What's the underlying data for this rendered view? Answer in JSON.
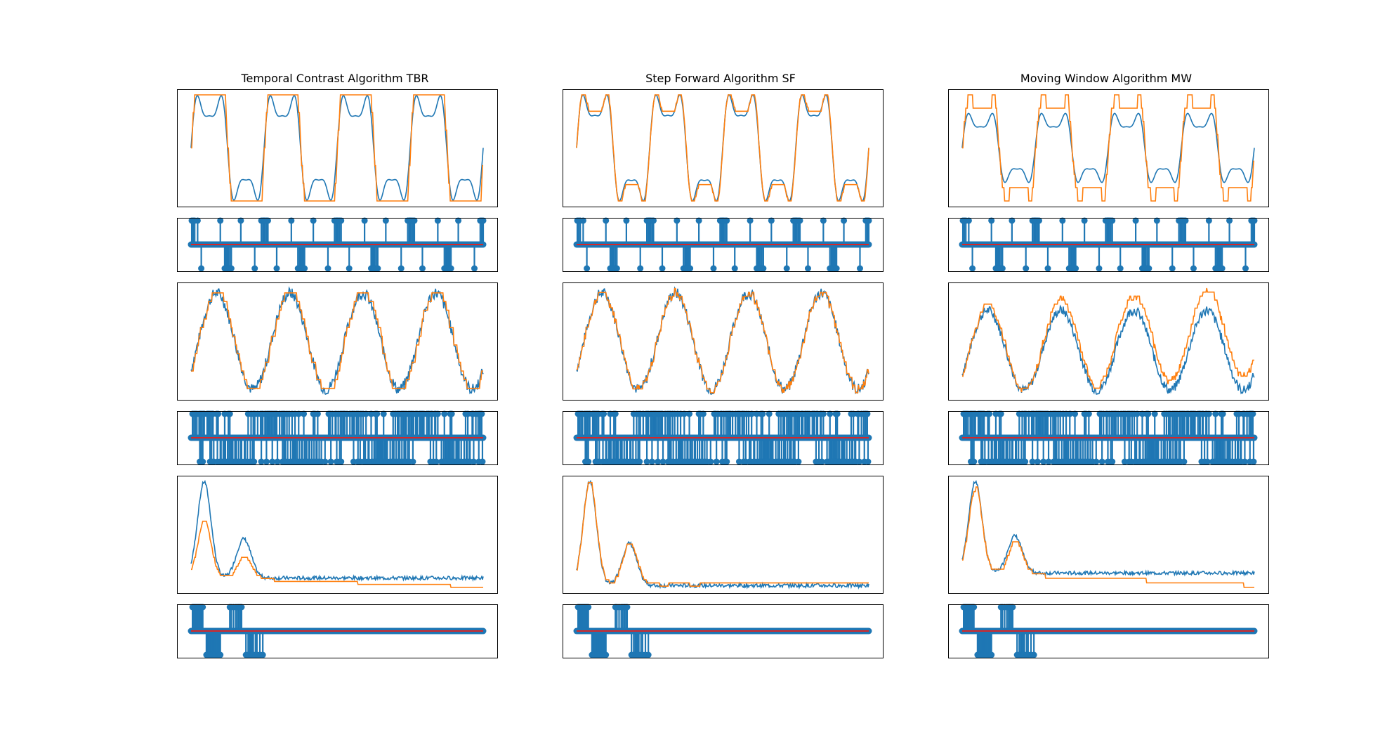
{
  "figure": {
    "columns": [
      {
        "title": "Temporal Contrast Algorithm TBR"
      },
      {
        "title": "Step Forward Algorithm SF"
      },
      {
        "title": "Moving Window Algorithm MW"
      }
    ]
  },
  "colors": {
    "original": "#1f77b4",
    "reconstructed": "#ff7f0e",
    "stem": "#1f77b4",
    "baseline": "#d62728",
    "frame": "#000000"
  },
  "chart_data": [
    {
      "type": "line",
      "column": "Temporal Contrast Algorithm TBR",
      "signal": "composite-wave",
      "series": [
        {
          "values": [],
          "color": "#1f77b4"
        },
        {
          "values": [],
          "color": "#ff7f0e"
        }
      ]
    },
    {
      "type": "stem",
      "column": "Temporal Contrast Algorithm TBR",
      "signal": "composite-wave",
      "spikes": [],
      "baseline": 0
    },
    {
      "type": "line",
      "column": "Temporal Contrast Algorithm TBR",
      "signal": "noisy-sine",
      "series": [
        {
          "values": [],
          "color": "#1f77b4"
        },
        {
          "values": [],
          "color": "#ff7f0e"
        }
      ]
    },
    {
      "type": "stem",
      "column": "Temporal Contrast Algorithm TBR",
      "signal": "noisy-sine",
      "spikes": [],
      "baseline": 0
    },
    {
      "type": "line",
      "column": "Temporal Contrast Algorithm TBR",
      "signal": "decaying-pulse",
      "series": [
        {
          "values": [],
          "color": "#1f77b4"
        },
        {
          "values": [],
          "color": "#ff7f0e"
        }
      ]
    },
    {
      "type": "stem",
      "column": "Temporal Contrast Algorithm TBR",
      "signal": "decaying-pulse",
      "spikes": [],
      "baseline": 0
    },
    {
      "type": "line",
      "column": "Step Forward Algorithm SF",
      "signal": "composite-wave",
      "series": [
        {
          "values": [],
          "color": "#1f77b4"
        },
        {
          "values": [],
          "color": "#ff7f0e"
        }
      ]
    },
    {
      "type": "stem",
      "column": "Step Forward Algorithm SF",
      "signal": "composite-wave",
      "spikes": [],
      "baseline": 0
    },
    {
      "type": "line",
      "column": "Step Forward Algorithm SF",
      "signal": "noisy-sine",
      "series": [
        {
          "values": [],
          "color": "#1f77b4"
        },
        {
          "values": [],
          "color": "#ff7f0e"
        }
      ]
    },
    {
      "type": "stem",
      "column": "Step Forward Algorithm SF",
      "signal": "noisy-sine",
      "spikes": [],
      "baseline": 0
    },
    {
      "type": "line",
      "column": "Step Forward Algorithm SF",
      "signal": "decaying-pulse",
      "series": [
        {
          "values": [],
          "color": "#1f77b4"
        },
        {
          "values": [],
          "color": "#ff7f0e"
        }
      ]
    },
    {
      "type": "stem",
      "column": "Step Forward Algorithm SF",
      "signal": "decaying-pulse",
      "spikes": [],
      "baseline": 0
    },
    {
      "type": "line",
      "column": "Moving Window Algorithm MW",
      "signal": "composite-wave",
      "series": [
        {
          "values": [],
          "color": "#1f77b4"
        },
        {
          "values": [],
          "color": "#ff7f0e"
        }
      ]
    },
    {
      "type": "stem",
      "column": "Moving Window Algorithm MW",
      "signal": "composite-wave",
      "spikes": [],
      "baseline": 0
    },
    {
      "type": "line",
      "column": "Moving Window Algorithm MW",
      "signal": "noisy-sine",
      "series": [
        {
          "values": [],
          "color": "#1f77b4"
        },
        {
          "values": [],
          "color": "#ff7f0e"
        }
      ]
    },
    {
      "type": "stem",
      "column": "Moving Window Algorithm MW",
      "signal": "noisy-sine",
      "spikes": [],
      "baseline": 0
    },
    {
      "type": "line",
      "column": "Moving Window Algorithm MW",
      "signal": "decaying-pulse",
      "series": [
        {
          "values": [],
          "color": "#1f77b4"
        },
        {
          "values": [],
          "color": "#ff7f0e"
        }
      ]
    },
    {
      "type": "stem",
      "column": "Moving Window Algorithm MW",
      "signal": "decaying-pulse",
      "spikes": [],
      "baseline": 0
    }
  ]
}
